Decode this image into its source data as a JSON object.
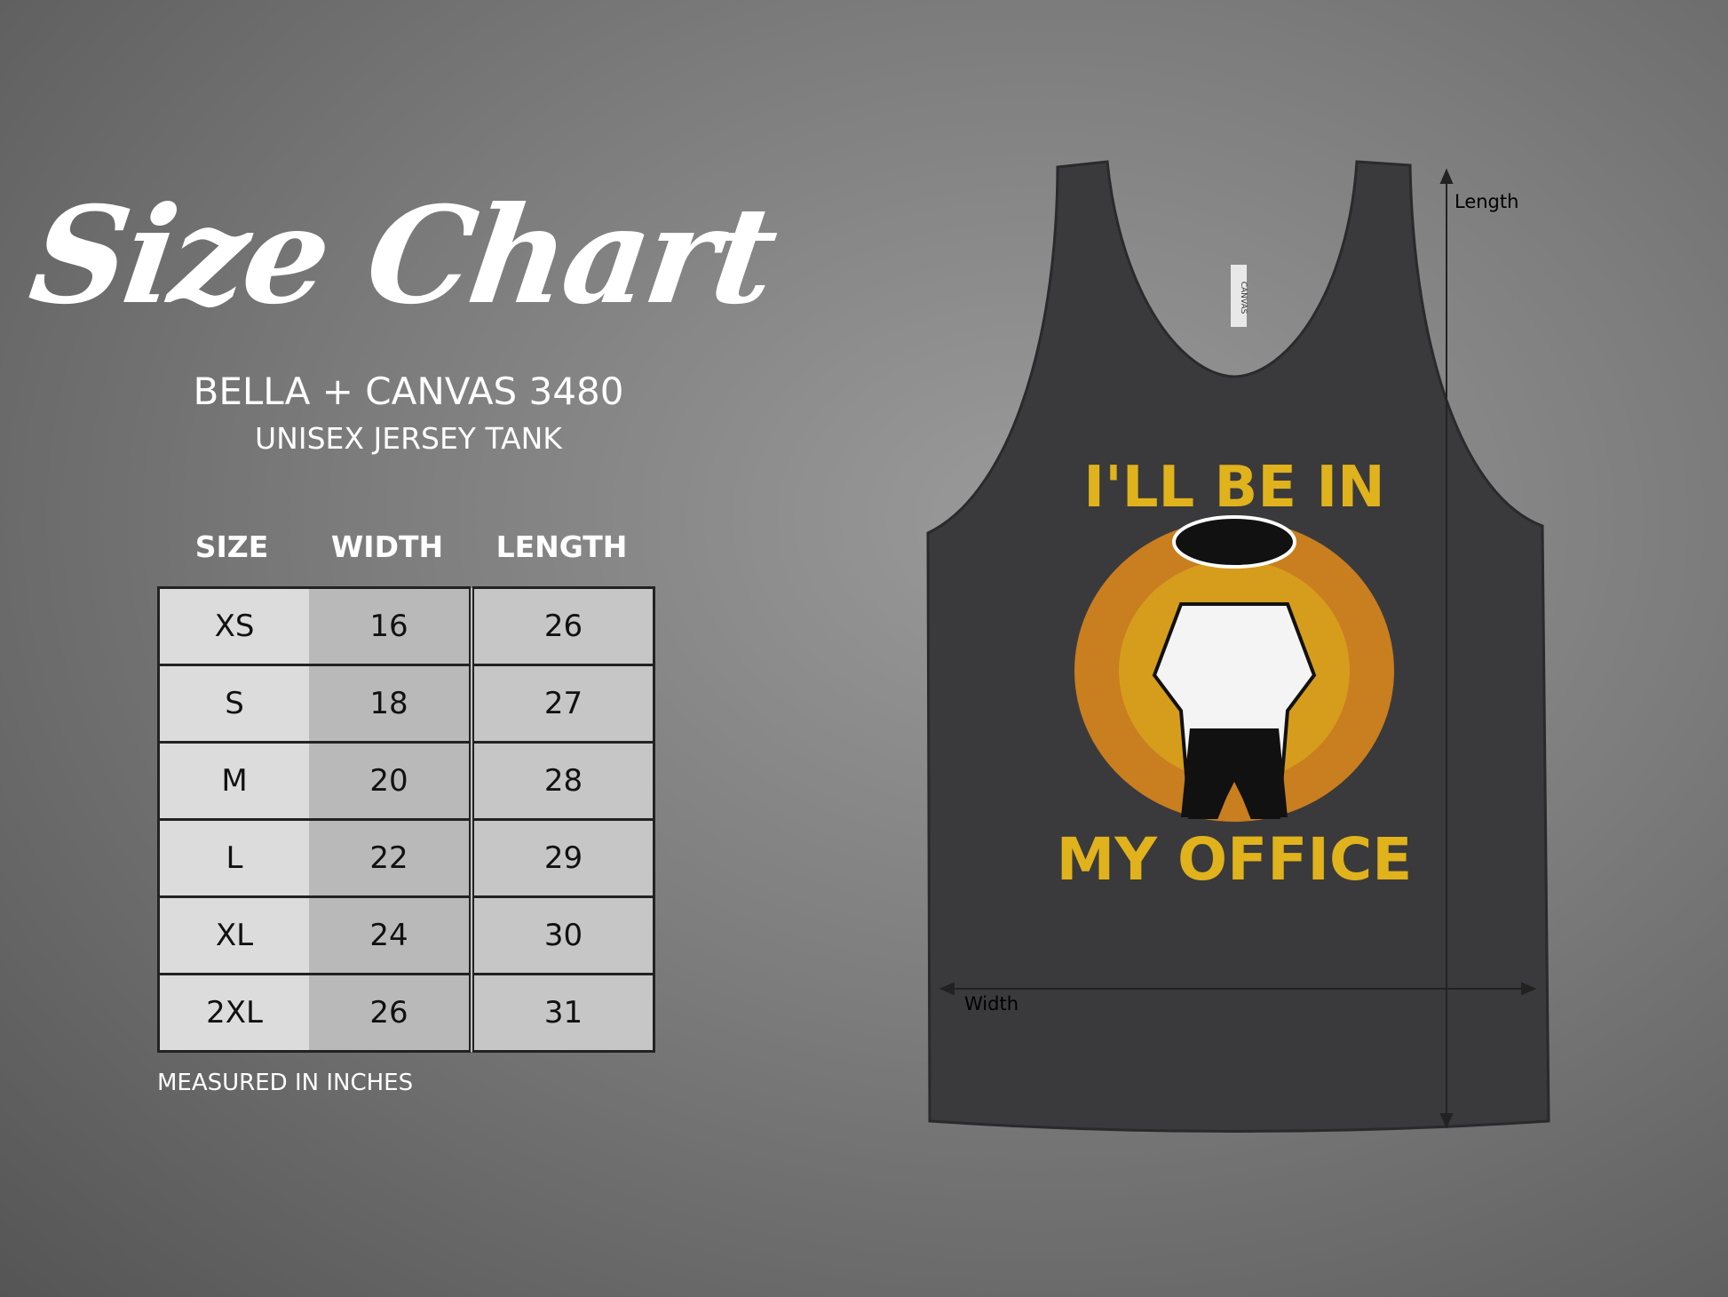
{
  "title": "Size Chart",
  "brand": "BELLA + CANVAS 3480",
  "subtitle": "UNISEX JERSEY TANK",
  "table": {
    "headers": [
      "SIZE",
      "WIDTH",
      "LENGTH"
    ],
    "rows": [
      [
        "XS",
        "16",
        "26"
      ],
      [
        "S",
        "18",
        "27"
      ],
      [
        "M",
        "20",
        "28"
      ],
      [
        "L",
        "22",
        "29"
      ],
      [
        "XL",
        "24",
        "30"
      ],
      [
        "2XL",
        "26",
        "31"
      ]
    ]
  },
  "note": "MEASURED IN INCHES",
  "garment": {
    "length_label": "Length",
    "width_label": "Width",
    "tag_text": "CANVAS",
    "print_top": "I'LL BE IN",
    "print_bottom": "MY OFFICE",
    "colors": {
      "tank": "#3a3a3c",
      "print_yellow": "#e0b21c",
      "honey_orange": "#d9861c",
      "honey_red": "#c0553a"
    }
  }
}
